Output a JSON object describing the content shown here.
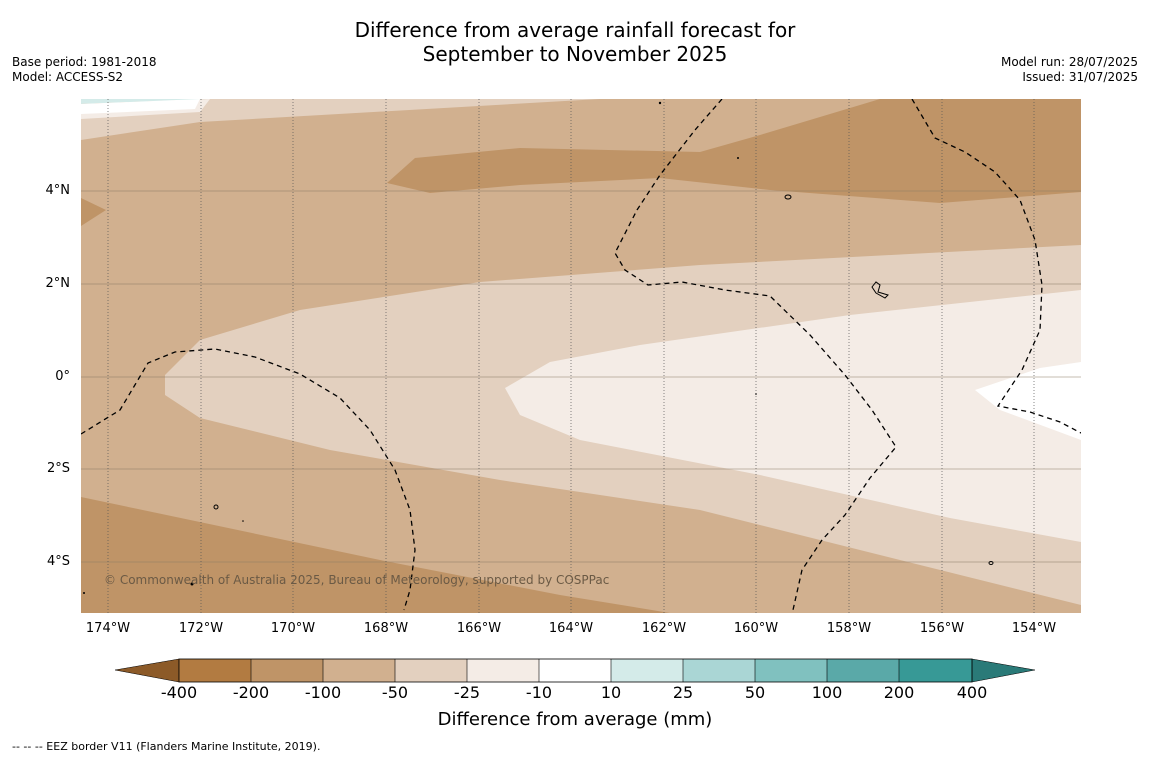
{
  "title": {
    "line1": "Difference from average rainfall forecast for",
    "line2": "September to November 2025"
  },
  "meta_left": {
    "base_period": "Base period: 1981-2018",
    "model": "Model: ACCESS-S2"
  },
  "meta_right": {
    "model_run": "Model run: 28/07/2025",
    "issued": "Issued: 31/07/2025"
  },
  "map": {
    "lat_labels": [
      "4°N",
      "2°N",
      "0°",
      "2°S",
      "4°S"
    ],
    "lon_labels": [
      "174°W",
      "172°W",
      "170°W",
      "168°W",
      "166°W",
      "164°W",
      "162°W",
      "160°W",
      "158°W",
      "156°W",
      "154°W"
    ],
    "copyright": "© Commonwealth of Australia 2025, Bureau of Meteorology, supported by COSPPac",
    "colors": {
      "band_m200": "#bf9467",
      "band_m100": "#d1b08f",
      "band_m50": "#e3d0bf",
      "band_m25": "#f4ece6",
      "band_m10": "#ffffff"
    }
  },
  "colorbar": {
    "ticks": [
      "-400",
      "-200",
      "-100",
      "-50",
      "-25",
      "-10",
      "10",
      "25",
      "50",
      "100",
      "200",
      "400"
    ],
    "colors": [
      "#8c5a28",
      "#b27b41",
      "#bf9467",
      "#d1b08f",
      "#e3d0bf",
      "#f4ece6",
      "#ffffff",
      "#d4ebe9",
      "#aad6d5",
      "#80c1bf",
      "#5aa9a8",
      "#379996",
      "#2a7a78"
    ],
    "title": "Difference from average (mm)"
  },
  "footnote": "--  --  -- EEZ border V11 (Flanders Marine Institute, 2019)."
}
